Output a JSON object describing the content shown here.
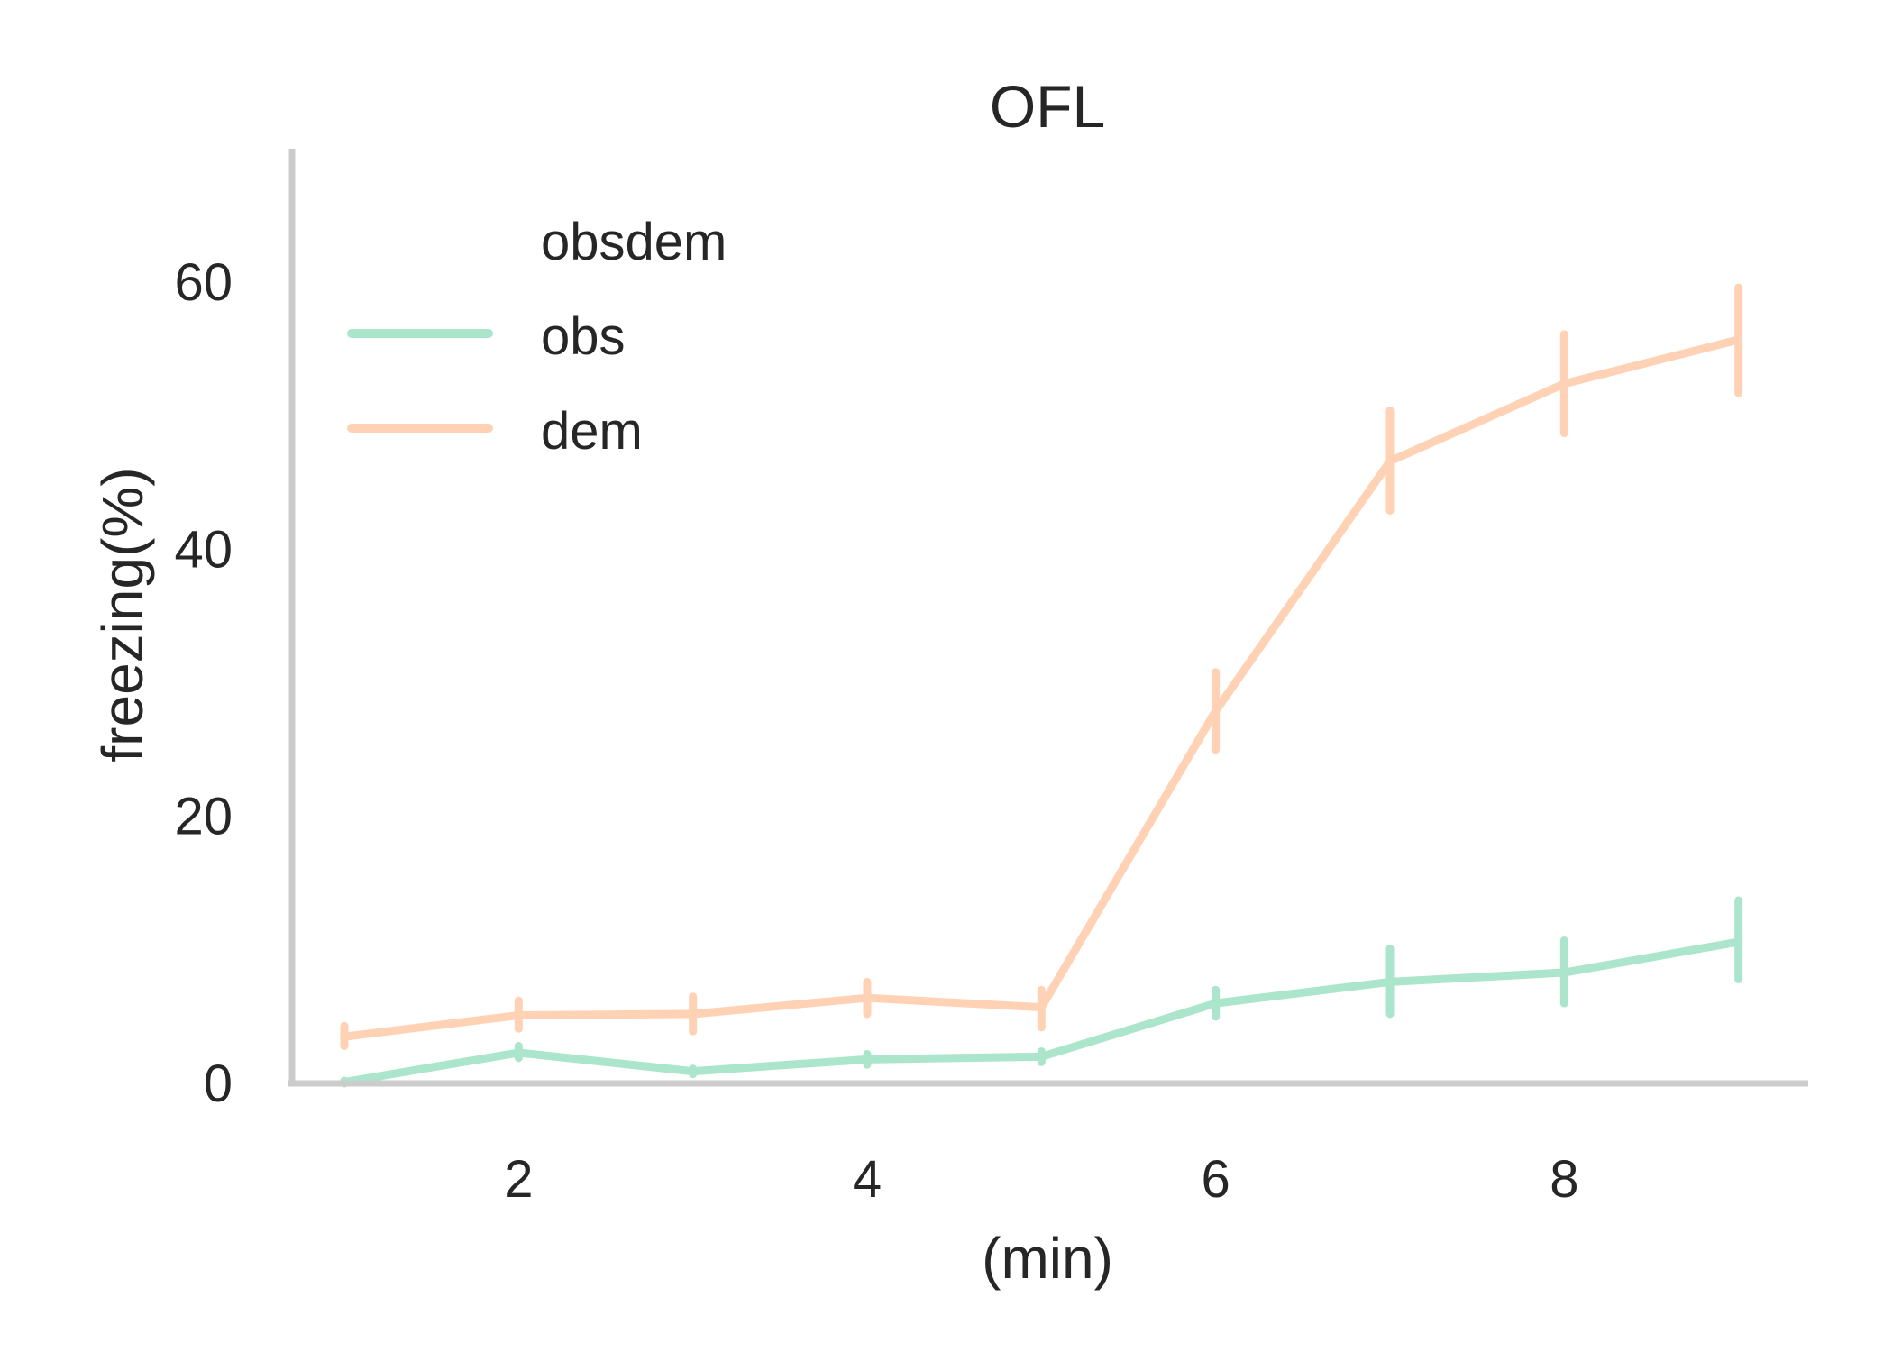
{
  "chart_data": {
    "type": "line",
    "title": "OFL",
    "xlabel": "(min)",
    "ylabel": "freezing(%)",
    "xlim": [
      0.7,
      9.4
    ],
    "ylim": [
      0,
      70
    ],
    "x_ticks": [
      2,
      4,
      6,
      8
    ],
    "y_ticks": [
      0,
      20,
      40,
      60
    ],
    "grid": false,
    "legend": {
      "title": "obsdem",
      "placement": "upper-left"
    },
    "x": [
      1,
      2,
      3,
      4,
      5,
      6,
      7,
      8,
      9
    ],
    "series": [
      {
        "name": "obs",
        "color": "#abe5cc",
        "values": [
          0.1,
          2.3,
          0.9,
          1.8,
          2.0,
          6.0,
          7.6,
          8.3,
          10.6
        ],
        "err_low": [
          0.0,
          1.9,
          0.7,
          1.4,
          1.6,
          5.0,
          5.2,
          6.0,
          7.8
        ],
        "err_high": [
          0.2,
          2.8,
          1.1,
          2.2,
          2.4,
          7.0,
          10.1,
          10.7,
          13.7
        ]
      },
      {
        "name": "dem",
        "color": "#ffd2b5",
        "values": [
          3.5,
          5.1,
          5.2,
          6.4,
          5.7,
          27.9,
          46.6,
          52.4,
          55.7
        ],
        "err_low": [
          2.8,
          4.1,
          3.9,
          5.2,
          4.2,
          25.0,
          42.9,
          48.7,
          51.7
        ],
        "err_high": [
          4.3,
          6.2,
          6.5,
          7.6,
          7.0,
          30.8,
          50.4,
          56.1,
          59.6
        ]
      }
    ]
  }
}
